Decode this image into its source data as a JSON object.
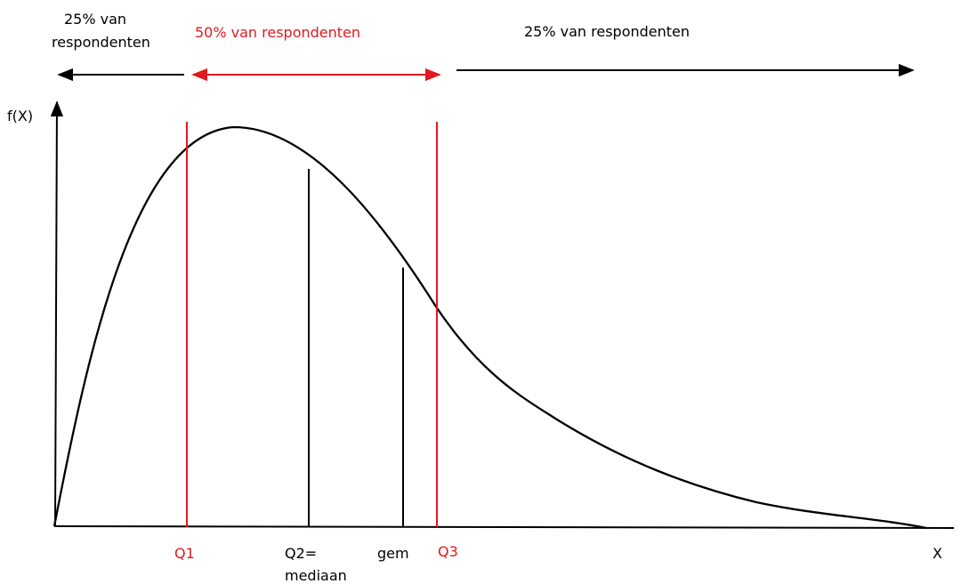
{
  "colors": {
    "black": "#000000",
    "red": "#e0191f"
  },
  "top_labels": {
    "left_line1": "25% van",
    "left_line2": "respondenten",
    "middle": "50% van respondenten",
    "right": "25% van respondenten"
  },
  "axes": {
    "y_label": "f(X)",
    "x_label": "X"
  },
  "markers": {
    "q1": "Q1",
    "q2_line1": "Q2=",
    "q2_line2": "mediaan",
    "mean": "gem",
    "q3": "Q3"
  }
}
